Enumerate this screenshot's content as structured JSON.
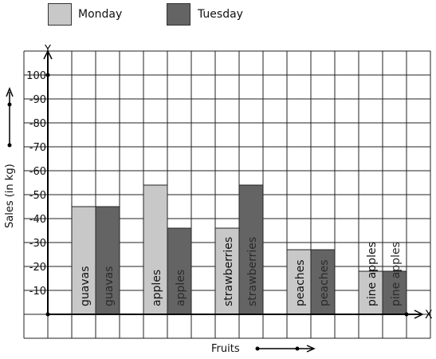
{
  "legend": {
    "items": [
      {
        "label": "Monday",
        "color": "#c8c8c8"
      },
      {
        "label": "Tuesday",
        "color": "#646464"
      }
    ]
  },
  "chart_data": {
    "type": "bar",
    "categories": [
      "guavas",
      "apples",
      "strawberries",
      "peaches",
      "pine apples"
    ],
    "series": [
      {
        "name": "Monday",
        "values": [
          45,
          54,
          36,
          27,
          18
        ],
        "color": "#c8c8c8"
      },
      {
        "name": "Tuesday",
        "values": [
          45,
          36,
          54,
          27,
          18
        ],
        "color": "#646464"
      }
    ],
    "ylim": [
      0,
      100
    ],
    "yticks": [
      "10",
      "20",
      "30",
      "40",
      "50",
      "60",
      "70",
      "80",
      "90",
      "100"
    ],
    "ytick_prefix": "-",
    "xlabel": "Fruits",
    "ylabel": "Sales (in kg)",
    "x_axis_name": "X",
    "y_axis_name": "Y",
    "grid": true,
    "legend_position": "top-left"
  }
}
